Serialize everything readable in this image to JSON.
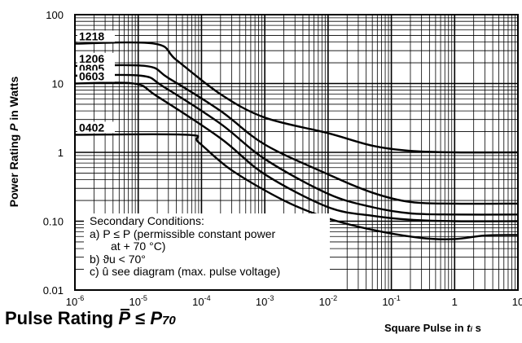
{
  "chart_data": {
    "type": "line",
    "title": "Pulse Rating P̄ ≤ P70",
    "xlabel": "Square Pulse in ti s",
    "ylabel": "Power Rating P in Watts",
    "x_scale": "log",
    "y_scale": "log",
    "xlim": [
      1e-06,
      10
    ],
    "ylim": [
      0.01,
      100
    ],
    "x_ticks": [
      "10-6",
      "10-5",
      "10-4",
      "10-3",
      "10-2",
      "10-1",
      "1",
      "10"
    ],
    "y_ticks": [
      "100",
      "10",
      "1",
      "0.10",
      "0.01"
    ],
    "grid": true,
    "series": [
      {
        "name": "1218",
        "points": [
          [
            1e-06,
            38
          ],
          [
            1.8e-05,
            38
          ],
          [
            4e-05,
            22
          ],
          [
            0.0002,
            7
          ],
          [
            0.001,
            3.2
          ],
          [
            0.01,
            1.9
          ],
          [
            0.05,
            1.25
          ],
          [
            0.2,
            1.05
          ],
          [
            1,
            1.0
          ],
          [
            10,
            1.0
          ]
        ]
      },
      {
        "name": "1206",
        "points": [
          [
            1e-06,
            18
          ],
          [
            1.3e-05,
            18
          ],
          [
            3e-05,
            12
          ],
          [
            0.0002,
            4
          ],
          [
            0.001,
            1.3
          ],
          [
            0.01,
            0.48
          ],
          [
            0.05,
            0.26
          ],
          [
            0.2,
            0.19
          ],
          [
            1,
            0.18
          ],
          [
            10,
            0.18
          ]
        ]
      },
      {
        "name": "0805",
        "points": [
          [
            1e-06,
            13
          ],
          [
            1.1e-05,
            13
          ],
          [
            2.5e-05,
            9
          ],
          [
            0.0002,
            2.6
          ],
          [
            0.001,
            0.8
          ],
          [
            0.01,
            0.25
          ],
          [
            0.05,
            0.16
          ],
          [
            0.2,
            0.13
          ],
          [
            1,
            0.125
          ],
          [
            10,
            0.125
          ]
        ]
      },
      {
        "name": "0603",
        "points": [
          [
            1e-06,
            10
          ],
          [
            8.5e-06,
            10
          ],
          [
            2e-05,
            6.5
          ],
          [
            0.0002,
            1.6
          ],
          [
            0.001,
            0.48
          ],
          [
            0.01,
            0.16
          ],
          [
            0.05,
            0.12
          ],
          [
            0.2,
            0.105
          ],
          [
            1,
            0.1
          ],
          [
            10,
            0.1
          ]
        ]
      },
      {
        "name": "0402",
        "points": [
          [
            1e-06,
            1.8
          ],
          [
            6e-05,
            1.8
          ],
          [
            9e-05,
            1.4
          ],
          [
            0.0003,
            0.55
          ],
          [
            0.002,
            0.2
          ],
          [
            0.01,
            0.11
          ],
          [
            0.05,
            0.075
          ],
          [
            0.3,
            0.057
          ],
          [
            1,
            0.055
          ],
          [
            3,
            0.062
          ],
          [
            10,
            0.063
          ]
        ]
      }
    ],
    "conditions": [
      "Secondary Conditions:",
      "a) P ≤ P (permissible constant power",
      "at + 70 °C)",
      "b) ϑu < 70°",
      "c) û see diagram (max. pulse voltage)"
    ]
  }
}
